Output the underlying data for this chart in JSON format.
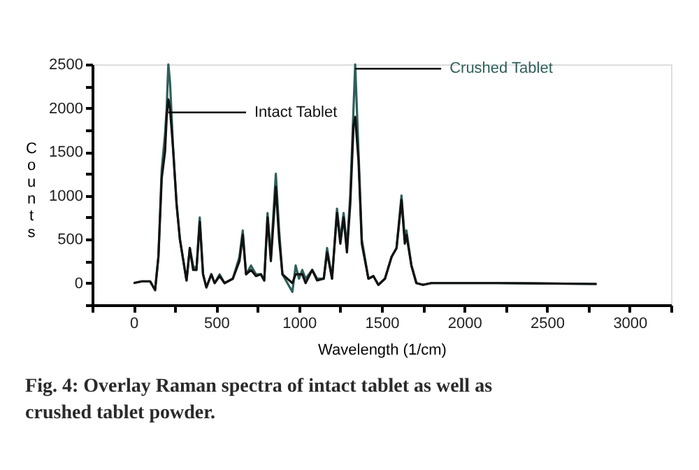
{
  "chart_data": {
    "type": "line",
    "xlabel": "Wavelength (1/cm)",
    "ylabel": "Counts",
    "x": [
      0,
      50,
      100,
      130,
      150,
      170,
      190,
      200,
      210,
      220,
      240,
      260,
      280,
      320,
      340,
      360,
      380,
      400,
      420,
      440,
      470,
      490,
      520,
      550,
      600,
      640,
      660,
      680,
      710,
      740,
      770,
      790,
      810,
      830,
      860,
      880,
      900,
      930,
      960,
      980,
      1000,
      1020,
      1040,
      1080,
      1110,
      1150,
      1170,
      1200,
      1230,
      1250,
      1270,
      1290,
      1310,
      1330,
      1340,
      1360,
      1380,
      1420,
      1450,
      1480,
      1520,
      1560,
      1590,
      1620,
      1640,
      1650,
      1680,
      1710,
      1750,
      1800,
      2200,
      2800
    ],
    "series": [
      {
        "name": "Crushed Tablet",
        "color": "#2f5f5a",
        "values": [
          0,
          20,
          20,
          -80,
          300,
          1300,
          1700,
          2000,
          2500,
          2300,
          1500,
          900,
          500,
          30,
          400,
          200,
          150,
          750,
          100,
          -50,
          100,
          0,
          100,
          0,
          50,
          300,
          600,
          100,
          200,
          100,
          100,
          30,
          800,
          300,
          1250,
          600,
          100,
          0,
          -100,
          200,
          50,
          150,
          50,
          150,
          50,
          50,
          400,
          50,
          850,
          500,
          800,
          400,
          1000,
          2000,
          2500,
          1500,
          500,
          50,
          80,
          -20,
          50,
          300,
          400,
          1000,
          500,
          600,
          200,
          0,
          -20,
          0,
          0,
          -10
        ]
      },
      {
        "name": "Intact Tablet",
        "color": "#111111",
        "values": [
          0,
          20,
          20,
          -80,
          300,
          1200,
          1500,
          1900,
          2100,
          2000,
          1500,
          900,
          500,
          30,
          400,
          150,
          150,
          700,
          100,
          -50,
          100,
          0,
          80,
          0,
          50,
          250,
          550,
          100,
          150,
          80,
          100,
          30,
          750,
          250,
          1100,
          500,
          100,
          50,
          0,
          100,
          100,
          100,
          0,
          150,
          30,
          50,
          350,
          50,
          800,
          450,
          750,
          350,
          900,
          1800,
          1900,
          1400,
          450,
          50,
          80,
          -20,
          50,
          300,
          400,
          950,
          450,
          550,
          200,
          0,
          -20,
          0,
          0,
          -10
        ]
      }
    ],
    "xlim": [
      -250,
      3250
    ],
    "xticks": [
      {
        "value": -250,
        "label": null
      },
      0,
      {
        "value": 250,
        "label": null
      },
      500,
      {
        "value": 750,
        "label": null
      },
      1000,
      {
        "value": 1250,
        "label": null
      },
      1500,
      {
        "value": 1750,
        "label": null
      },
      2000,
      {
        "value": 2250,
        "label": null
      },
      2500,
      {
        "value": 2750,
        "label": null
      },
      3000,
      {
        "value": 3250,
        "label": null
      }
    ],
    "ylim": [
      -250,
      2500
    ],
    "yticks": [
      {
        "value": -250,
        "label": null
      },
      0,
      {
        "value": 250,
        "label": null
      },
      500,
      {
        "value": 750,
        "label": null
      },
      1000,
      {
        "value": 1250,
        "label": null
      },
      1500,
      {
        "value": 1750,
        "label": null
      },
      2000,
      {
        "value": 2250,
        "label": null
      },
      2500
    ],
    "annotations": [
      "Fig. 4: Overlay Raman spectra of intact tablet as well as crushed tablet powder."
    ],
    "grid": false,
    "legend": false,
    "line_style": "solid",
    "marker": "none"
  }
}
